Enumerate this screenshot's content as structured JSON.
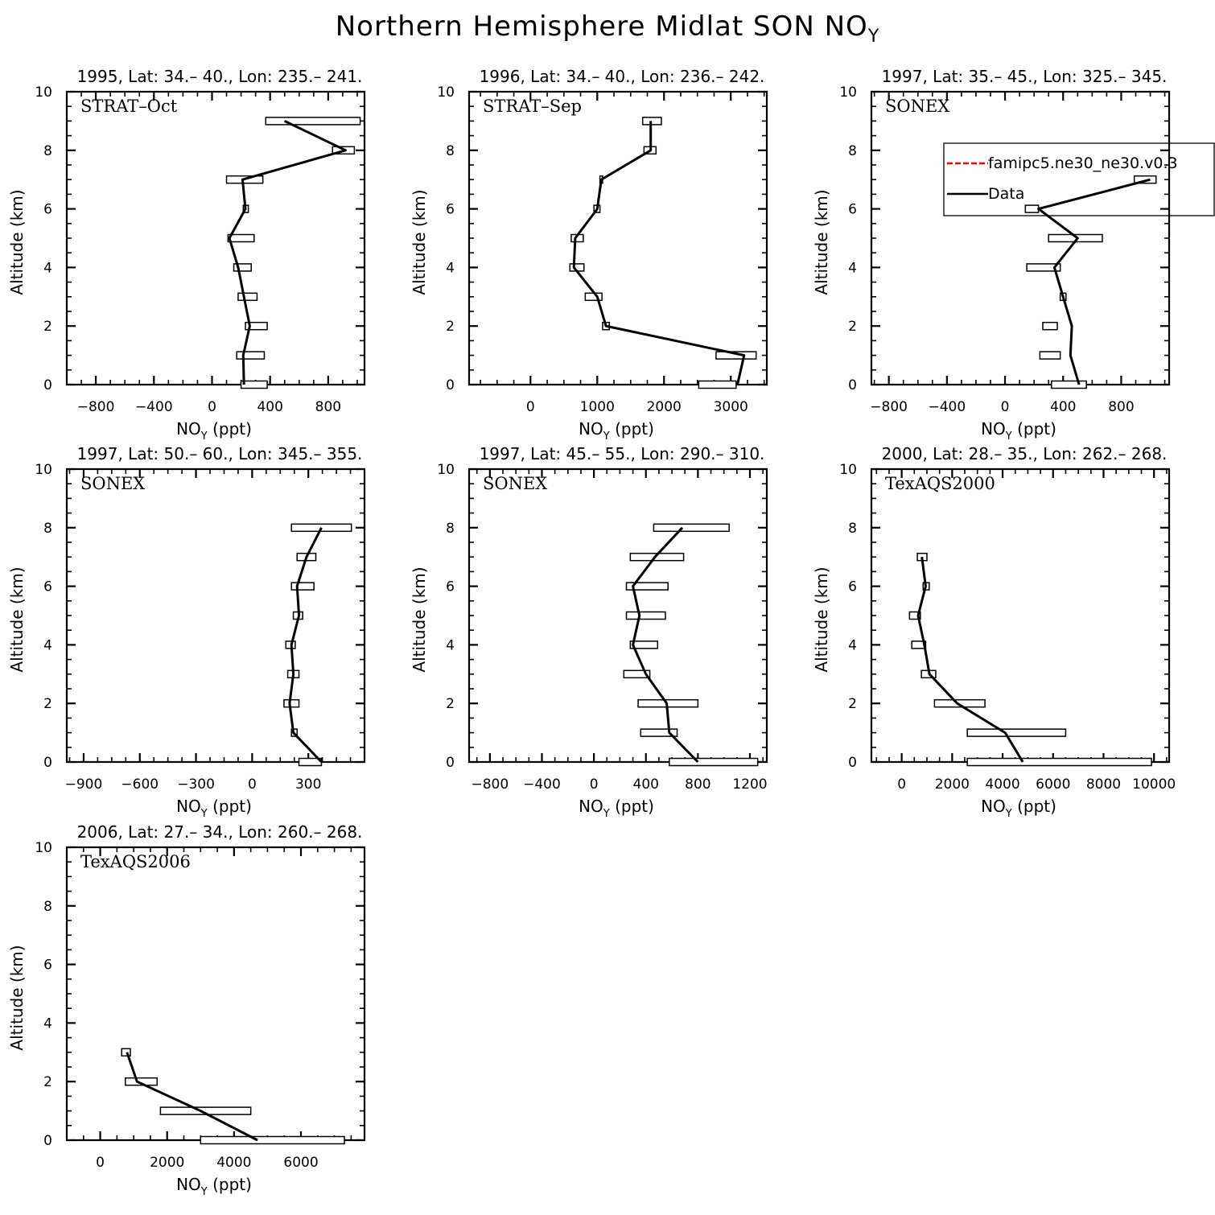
{
  "title": {
    "main": "Northern Hemisphere Midlat SON NO",
    "sub": "Y"
  },
  "axis_labels": {
    "y": "Altitude (km)",
    "x_main": "NO",
    "x_sub": "Y",
    "x_unit": " (ppt)"
  },
  "legend": {
    "entries": [
      {
        "label": "famipc5.ne30_ne30.v0.3",
        "color": "#ff0000",
        "style": "dashed"
      },
      {
        "label": "Data",
        "color": "#000000",
        "style": "solid"
      }
    ]
  },
  "chart_data": [
    {
      "type": "line",
      "title": "1995, Lat: 34.– 40., Lon: 235.– 241.",
      "campaign": "STRAT–Oct",
      "xlim": [
        -1000,
        1050
      ],
      "ylim": [
        0,
        10
      ],
      "xticks": [
        -800,
        -400,
        0,
        400,
        800
      ],
      "xticklabels": [
        "−800",
        "−400",
        "0",
        "400",
        "800"
      ],
      "yticks": [
        0,
        2,
        4,
        6,
        8,
        10
      ],
      "series": [
        {
          "name": "Data",
          "points": [
            [
              220,
              0
            ],
            [
              215,
              1
            ],
            [
              260,
              2
            ],
            [
              220,
              3
            ],
            [
              180,
              4
            ],
            [
              120,
              5
            ],
            [
              230,
              6
            ],
            [
              210,
              7
            ],
            [
              920,
              8
            ],
            [
              500,
              9
            ]
          ]
        }
      ],
      "ranges": [
        [
          200,
          380,
          0
        ],
        [
          170,
          360,
          1
        ],
        [
          230,
          380,
          2
        ],
        [
          180,
          310,
          3
        ],
        [
          150,
          270,
          4
        ],
        [
          110,
          290,
          5
        ],
        [
          215,
          250,
          6
        ],
        [
          100,
          350,
          7
        ],
        [
          830,
          980,
          8
        ],
        [
          370,
          1020,
          9
        ]
      ]
    },
    {
      "type": "line",
      "title": "1996, Lat: 34.– 40., Lon: 236.– 242.",
      "campaign": "STRAT–Sep",
      "xlim": [
        -920,
        3540
      ],
      "ylim": [
        0,
        10
      ],
      "xticks": [
        0,
        1000,
        2000,
        3000
      ],
      "xticklabels": [
        "0",
        "1000",
        "2000",
        "3000"
      ],
      "yticks": [
        0,
        2,
        4,
        6,
        8,
        10
      ],
      "series": [
        {
          "name": "Data",
          "points": [
            [
              3100,
              0
            ],
            [
              3200,
              1
            ],
            [
              1130,
              2
            ],
            [
              1000,
              3
            ],
            [
              650,
              4
            ],
            [
              670,
              5
            ],
            [
              1000,
              6
            ],
            [
              1060,
              7
            ],
            [
              1800,
              8
            ],
            [
              1800,
              9
            ]
          ]
        }
      ],
      "ranges": [
        [
          2520,
          3080,
          0
        ],
        [
          2780,
          3380,
          1
        ],
        [
          1080,
          1180,
          2
        ],
        [
          820,
          1070,
          3
        ],
        [
          590,
          800,
          4
        ],
        [
          610,
          790,
          5
        ],
        [
          950,
          1040,
          6
        ],
        [
          1040,
          1080,
          7
        ],
        [
          1700,
          1880,
          8
        ],
        [
          1680,
          1960,
          9
        ]
      ]
    },
    {
      "type": "line",
      "title": "1997, Lat: 35.– 45., Lon: 325.– 345.",
      "campaign": "SONEX",
      "xlim": [
        -920,
        1130
      ],
      "ylim": [
        0,
        10
      ],
      "xticks": [
        -800,
        -400,
        0,
        400,
        800
      ],
      "xticklabels": [
        "−800",
        "−400",
        "0",
        "400",
        "800"
      ],
      "yticks": [
        0,
        2,
        4,
        6,
        8,
        10
      ],
      "series": [
        {
          "name": "Data",
          "points": [
            [
              510,
              0
            ],
            [
              450,
              1
            ],
            [
              460,
              2
            ],
            [
              400,
              3
            ],
            [
              340,
              4
            ],
            [
              500,
              5
            ],
            [
              230,
              6
            ],
            [
              1000,
              7
            ]
          ]
        }
      ],
      "ranges": [
        [
          320,
          560,
          0
        ],
        [
          240,
          380,
          1
        ],
        [
          260,
          360,
          2
        ],
        [
          380,
          420,
          3
        ],
        [
          150,
          380,
          4
        ],
        [
          300,
          670,
          5
        ],
        [
          140,
          230,
          6
        ],
        [
          890,
          1040,
          7
        ]
      ],
      "has_legend": true
    },
    {
      "type": "line",
      "title": "1997, Lat: 50.– 60., Lon: 345.– 355.",
      "campaign": "SONEX",
      "xlim": [
        -990,
        600
      ],
      "ylim": [
        0,
        10
      ],
      "xticks": [
        -900,
        -600,
        -300,
        0,
        300
      ],
      "xticklabels": [
        "−900",
        "−600",
        "−300",
        "0",
        "300"
      ],
      "yticks": [
        0,
        2,
        4,
        6,
        8,
        10
      ],
      "series": [
        {
          "name": "Data",
          "points": [
            [
              370,
              0
            ],
            [
              220,
              1
            ],
            [
              200,
              2
            ],
            [
              220,
              3
            ],
            [
              210,
              4
            ],
            [
              250,
              5
            ],
            [
              240,
              6
            ],
            [
              290,
              7
            ],
            [
              370,
              8
            ]
          ]
        }
      ],
      "ranges": [
        [
          250,
          370,
          0
        ],
        [
          210,
          240,
          1
        ],
        [
          170,
          250,
          2
        ],
        [
          190,
          250,
          3
        ],
        [
          180,
          230,
          4
        ],
        [
          220,
          270,
          5
        ],
        [
          210,
          330,
          6
        ],
        [
          240,
          340,
          7
        ],
        [
          210,
          530,
          8
        ]
      ]
    },
    {
      "type": "line",
      "title": "1997, Lat: 45.– 55., Lon: 290.– 310.",
      "campaign": "SONEX",
      "xlim": [
        -960,
        1330
      ],
      "ylim": [
        0,
        10
      ],
      "xticks": [
        -800,
        -400,
        0,
        400,
        800,
        1200
      ],
      "xticklabels": [
        "−800",
        "−400",
        "0",
        "400",
        "800",
        "1200"
      ],
      "yticks": [
        0,
        2,
        4,
        6,
        8,
        10
      ],
      "series": [
        {
          "name": "Data",
          "points": [
            [
              800,
              0
            ],
            [
              580,
              1
            ],
            [
              560,
              2
            ],
            [
              400,
              3
            ],
            [
              300,
              4
            ],
            [
              350,
              5
            ],
            [
              300,
              6
            ],
            [
              470,
              7
            ],
            [
              680,
              8
            ]
          ]
        }
      ],
      "ranges": [
        [
          580,
          1260,
          0
        ],
        [
          360,
          640,
          1
        ],
        [
          340,
          800,
          2
        ],
        [
          230,
          430,
          3
        ],
        [
          280,
          490,
          4
        ],
        [
          250,
          550,
          5
        ],
        [
          250,
          570,
          6
        ],
        [
          280,
          690,
          7
        ],
        [
          460,
          1040,
          8
        ]
      ]
    },
    {
      "type": "line",
      "title": "2000, Lat: 28.– 35., Lon: 262.– 268.",
      "campaign": "TexAQS2000",
      "xlim": [
        -1200,
        10600
      ],
      "ylim": [
        0,
        10
      ],
      "xticks": [
        0,
        2000,
        4000,
        6000,
        8000,
        10000
      ],
      "xticklabels": [
        "0",
        "2000",
        "4000",
        "6000",
        "8000",
        "10000"
      ],
      "yticks": [
        0,
        2,
        4,
        6,
        8,
        10
      ],
      "series": [
        {
          "name": "Data",
          "points": [
            [
              4800,
              0
            ],
            [
              4100,
              1
            ],
            [
              2200,
              2
            ],
            [
              1100,
              3
            ],
            [
              900,
              4
            ],
            [
              650,
              5
            ],
            [
              950,
              6
            ],
            [
              800,
              7
            ]
          ]
        }
      ],
      "ranges": [
        [
          2600,
          9900,
          0
        ],
        [
          2600,
          6500,
          1
        ],
        [
          1300,
          3300,
          2
        ],
        [
          780,
          1350,
          3
        ],
        [
          400,
          950,
          4
        ],
        [
          310,
          740,
          5
        ],
        [
          850,
          1090,
          6
        ],
        [
          620,
          1000,
          7
        ]
      ]
    },
    {
      "type": "line",
      "title": "2006, Lat: 27.– 34., Lon: 260.– 268.",
      "campaign": "TexAQS2006",
      "xlim": [
        -1000,
        7900
      ],
      "ylim": [
        0,
        10
      ],
      "xticks": [
        0,
        2000,
        4000,
        6000
      ],
      "xticklabels": [
        "0",
        "2000",
        "4000",
        "6000"
      ],
      "yticks": [
        0,
        2,
        4,
        6,
        8,
        10
      ],
      "series": [
        {
          "name": "Data",
          "points": [
            [
              4700,
              0
            ],
            [
              3000,
              1
            ],
            [
              1100,
              2
            ],
            [
              800,
              3
            ]
          ]
        }
      ],
      "ranges": [
        [
          3000,
          7300,
          0
        ],
        [
          1800,
          4500,
          1
        ],
        [
          750,
          1700,
          2
        ],
        [
          640,
          900,
          3
        ]
      ]
    }
  ]
}
